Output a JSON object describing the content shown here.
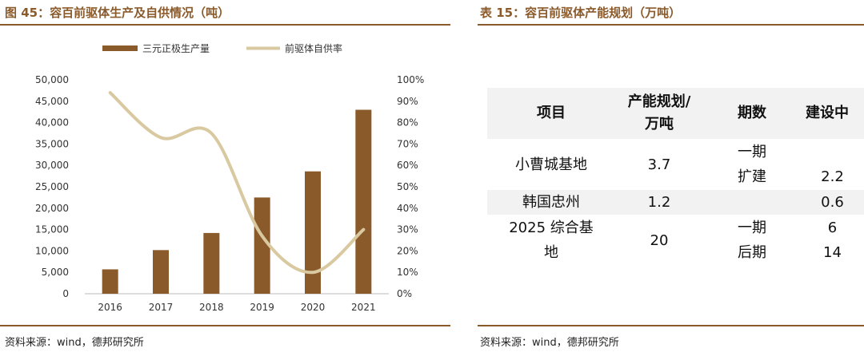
{
  "left_panel": {
    "title": "图 45：容百前驱体生产及自供情况（吨）",
    "source": "资料来源：wind，德邦研究所"
  },
  "right_panel": {
    "title": "表 15：容百前驱体产能规划（万吨）",
    "source": "资料来源：wind，德邦研究所",
    "table": {
      "headers": [
        "项目",
        "产能规划/万吨",
        "期数",
        "建设中"
      ],
      "rows": [
        {
          "project": "小曹城基地",
          "capacity": "3.7",
          "phase": [
            "一期",
            "扩建"
          ],
          "building": "2.2"
        },
        {
          "project": "韩国忠州",
          "capacity": "1.2",
          "phase": [],
          "building": "0.6"
        },
        {
          "project": "2025 综合基地",
          "capacity": "20",
          "phase": [
            "一期",
            "后期"
          ],
          "building": [
            "6",
            "14"
          ]
        }
      ]
    }
  },
  "colors": {
    "bar": "#8B5A2B",
    "line": "#D9C9A0",
    "accent": "#8B5A2B",
    "shade": "#f2f2f2"
  },
  "chart_data": {
    "type": "bar",
    "title": "图 45：容百前驱体生产及自供情况（吨）",
    "categories": [
      "2016",
      "2017",
      "2018",
      "2019",
      "2020",
      "2021"
    ],
    "series": [
      {
        "name": "三元正极生产量",
        "type": "bar",
        "axis": "left",
        "values": [
          5700,
          10200,
          14200,
          22500,
          28600,
          43000
        ]
      },
      {
        "name": "前驱体自供率",
        "type": "line",
        "axis": "right",
        "smooth": true,
        "values": [
          94,
          73,
          75,
          27,
          10,
          30
        ]
      }
    ],
    "y_left": {
      "min": 0,
      "max": 50000,
      "step": 5000,
      "ticks": [
        "0",
        "5,000",
        "10,000",
        "15,000",
        "20,000",
        "25,000",
        "30,000",
        "35,000",
        "40,000",
        "45,000",
        "50,000"
      ]
    },
    "y_right": {
      "min": 0,
      "max": 100,
      "step": 10,
      "ticks": [
        "0%",
        "10%",
        "20%",
        "30%",
        "40%",
        "50%",
        "60%",
        "70%",
        "80%",
        "90%",
        "100%"
      ]
    },
    "legend": "top",
    "grid": false
  }
}
